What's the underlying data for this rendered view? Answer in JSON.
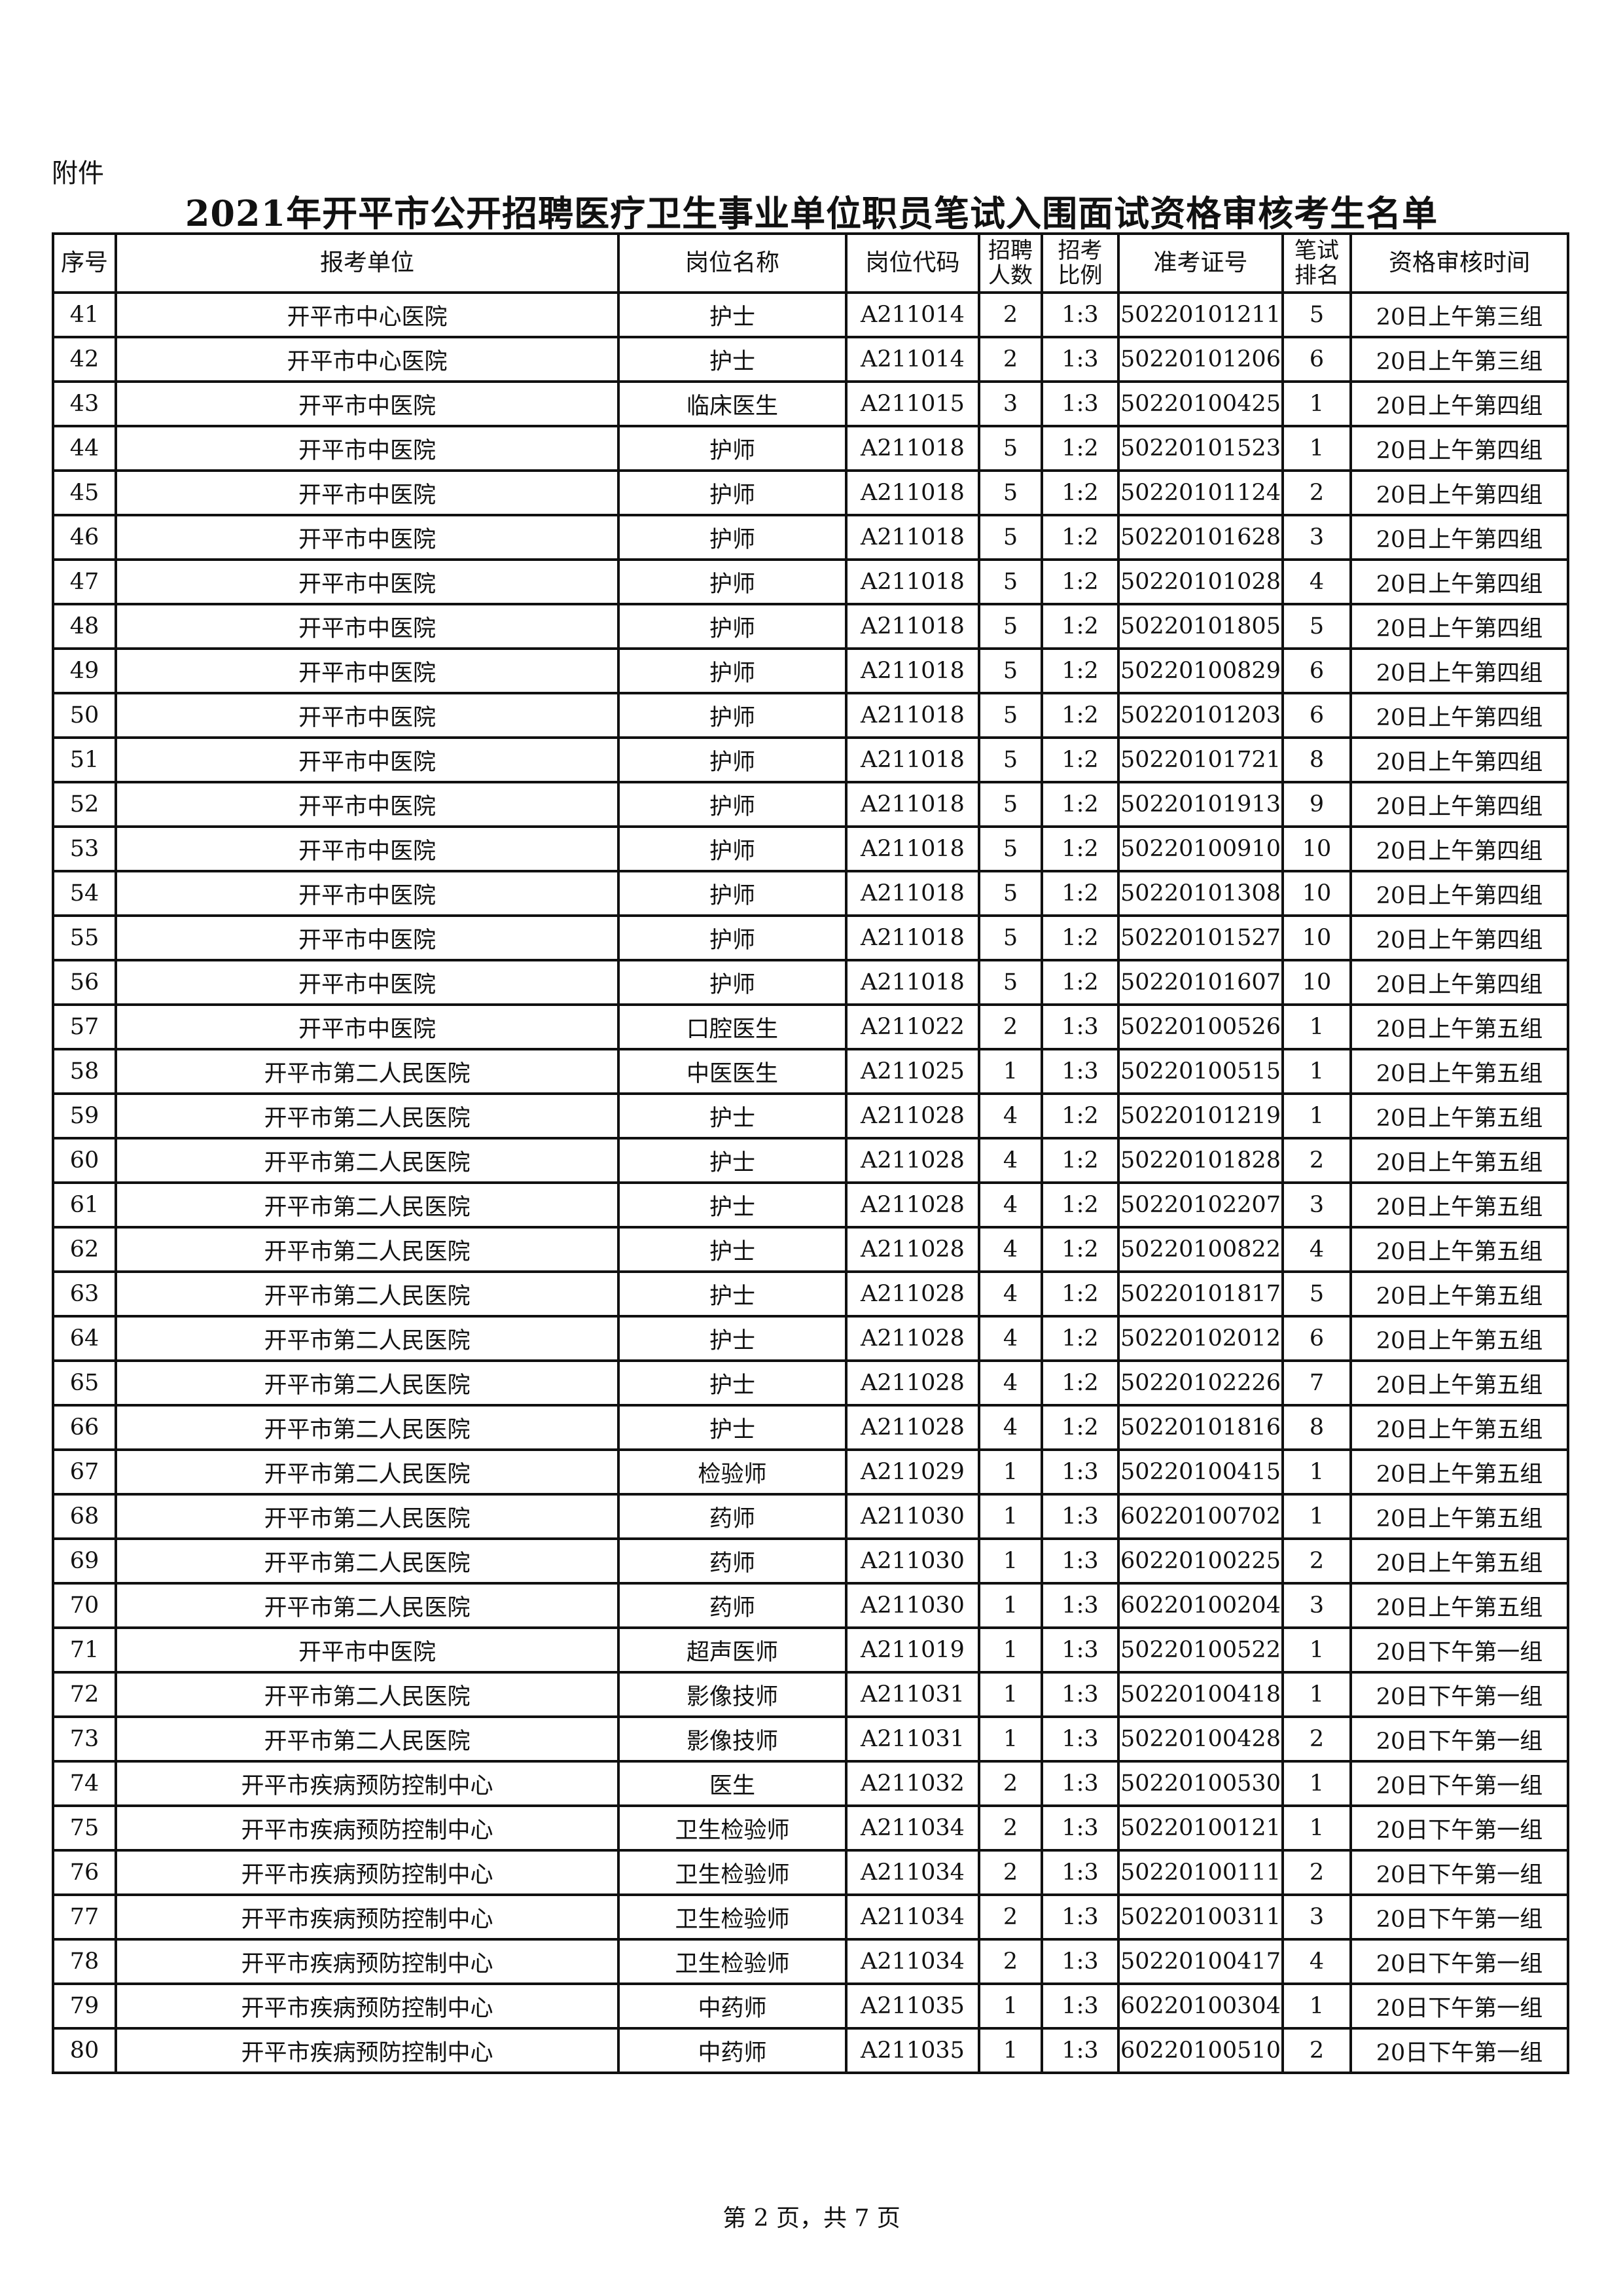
{
  "attachment_label": "附件",
  "title": "2021年开平市公开招聘医疗卫生事业单位职员笔试入围面试资格审核考生名单",
  "columns": [
    "序号",
    "报考单位",
    "岗位名称",
    "岗位代码",
    "招聘\n人数",
    "招考\n比例",
    "准考证号",
    "笔试\n排名",
    "资格审核时间"
  ],
  "rows": [
    [
      "41",
      "开平市中心医院",
      "护士",
      "A211014",
      "2",
      "1:3",
      "50220101211",
      "5",
      "20日上午第三组"
    ],
    [
      "42",
      "开平市中心医院",
      "护士",
      "A211014",
      "2",
      "1:3",
      "50220101206",
      "6",
      "20日上午第三组"
    ],
    [
      "43",
      "开平市中医院",
      "临床医生",
      "A211015",
      "3",
      "1:3",
      "50220100425",
      "1",
      "20日上午第四组"
    ],
    [
      "44",
      "开平市中医院",
      "护师",
      "A211018",
      "5",
      "1:2",
      "50220101523",
      "1",
      "20日上午第四组"
    ],
    [
      "45",
      "开平市中医院",
      "护师",
      "A211018",
      "5",
      "1:2",
      "50220101124",
      "2",
      "20日上午第四组"
    ],
    [
      "46",
      "开平市中医院",
      "护师",
      "A211018",
      "5",
      "1:2",
      "50220101628",
      "3",
      "20日上午第四组"
    ],
    [
      "47",
      "开平市中医院",
      "护师",
      "A211018",
      "5",
      "1:2",
      "50220101028",
      "4",
      "20日上午第四组"
    ],
    [
      "48",
      "开平市中医院",
      "护师",
      "A211018",
      "5",
      "1:2",
      "50220101805",
      "5",
      "20日上午第四组"
    ],
    [
      "49",
      "开平市中医院",
      "护师",
      "A211018",
      "5",
      "1:2",
      "50220100829",
      "6",
      "20日上午第四组"
    ],
    [
      "50",
      "开平市中医院",
      "护师",
      "A211018",
      "5",
      "1:2",
      "50220101203",
      "6",
      "20日上午第四组"
    ],
    [
      "51",
      "开平市中医院",
      "护师",
      "A211018",
      "5",
      "1:2",
      "50220101721",
      "8",
      "20日上午第四组"
    ],
    [
      "52",
      "开平市中医院",
      "护师",
      "A211018",
      "5",
      "1:2",
      "50220101913",
      "9",
      "20日上午第四组"
    ],
    [
      "53",
      "开平市中医院",
      "护师",
      "A211018",
      "5",
      "1:2",
      "50220100910",
      "10",
      "20日上午第四组"
    ],
    [
      "54",
      "开平市中医院",
      "护师",
      "A211018",
      "5",
      "1:2",
      "50220101308",
      "10",
      "20日上午第四组"
    ],
    [
      "55",
      "开平市中医院",
      "护师",
      "A211018",
      "5",
      "1:2",
      "50220101527",
      "10",
      "20日上午第四组"
    ],
    [
      "56",
      "开平市中医院",
      "护师",
      "A211018",
      "5",
      "1:2",
      "50220101607",
      "10",
      "20日上午第四组"
    ],
    [
      "57",
      "开平市中医院",
      "口腔医生",
      "A211022",
      "2",
      "1:3",
      "50220100526",
      "1",
      "20日上午第五组"
    ],
    [
      "58",
      "开平市第二人民医院",
      "中医医生",
      "A211025",
      "1",
      "1:3",
      "50220100515",
      "1",
      "20日上午第五组"
    ],
    [
      "59",
      "开平市第二人民医院",
      "护士",
      "A211028",
      "4",
      "1:2",
      "50220101219",
      "1",
      "20日上午第五组"
    ],
    [
      "60",
      "开平市第二人民医院",
      "护士",
      "A211028",
      "4",
      "1:2",
      "50220101828",
      "2",
      "20日上午第五组"
    ],
    [
      "61",
      "开平市第二人民医院",
      "护士",
      "A211028",
      "4",
      "1:2",
      "50220102207",
      "3",
      "20日上午第五组"
    ],
    [
      "62",
      "开平市第二人民医院",
      "护士",
      "A211028",
      "4",
      "1:2",
      "50220100822",
      "4",
      "20日上午第五组"
    ],
    [
      "63",
      "开平市第二人民医院",
      "护士",
      "A211028",
      "4",
      "1:2",
      "50220101817",
      "5",
      "20日上午第五组"
    ],
    [
      "64",
      "开平市第二人民医院",
      "护士",
      "A211028",
      "4",
      "1:2",
      "50220102012",
      "6",
      "20日上午第五组"
    ],
    [
      "65",
      "开平市第二人民医院",
      "护士",
      "A211028",
      "4",
      "1:2",
      "50220102226",
      "7",
      "20日上午第五组"
    ],
    [
      "66",
      "开平市第二人民医院",
      "护士",
      "A211028",
      "4",
      "1:2",
      "50220101816",
      "8",
      "20日上午第五组"
    ],
    [
      "67",
      "开平市第二人民医院",
      "检验师",
      "A211029",
      "1",
      "1:3",
      "50220100415",
      "1",
      "20日上午第五组"
    ],
    [
      "68",
      "开平市第二人民医院",
      "药师",
      "A211030",
      "1",
      "1:3",
      "60220100702",
      "1",
      "20日上午第五组"
    ],
    [
      "69",
      "开平市第二人民医院",
      "药师",
      "A211030",
      "1",
      "1:3",
      "60220100225",
      "2",
      "20日上午第五组"
    ],
    [
      "70",
      "开平市第二人民医院",
      "药师",
      "A211030",
      "1",
      "1:3",
      "60220100204",
      "3",
      "20日上午第五组"
    ],
    [
      "71",
      "开平市中医院",
      "超声医师",
      "A211019",
      "1",
      "1:3",
      "50220100522",
      "1",
      "20日下午第一组"
    ],
    [
      "72",
      "开平市第二人民医院",
      "影像技师",
      "A211031",
      "1",
      "1:3",
      "50220100418",
      "1",
      "20日下午第一组"
    ],
    [
      "73",
      "开平市第二人民医院",
      "影像技师",
      "A211031",
      "1",
      "1:3",
      "50220100428",
      "2",
      "20日下午第一组"
    ],
    [
      "74",
      "开平市疾病预防控制中心",
      "医生",
      "A211032",
      "2",
      "1:3",
      "50220100530",
      "1",
      "20日下午第一组"
    ],
    [
      "75",
      "开平市疾病预防控制中心",
      "卫生检验师",
      "A211034",
      "2",
      "1:3",
      "50220100121",
      "1",
      "20日下午第一组"
    ],
    [
      "76",
      "开平市疾病预防控制中心",
      "卫生检验师",
      "A211034",
      "2",
      "1:3",
      "50220100111",
      "2",
      "20日下午第一组"
    ],
    [
      "77",
      "开平市疾病预防控制中心",
      "卫生检验师",
      "A211034",
      "2",
      "1:3",
      "50220100311",
      "3",
      "20日下午第一组"
    ],
    [
      "78",
      "开平市疾病预防控制中心",
      "卫生检验师",
      "A211034",
      "2",
      "1:3",
      "50220100417",
      "4",
      "20日下午第一组"
    ],
    [
      "79",
      "开平市疾病预防控制中心",
      "中药师",
      "A211035",
      "1",
      "1:3",
      "60220100304",
      "1",
      "20日下午第一组"
    ],
    [
      "80",
      "开平市疾病预防控制中心",
      "中药师",
      "A211035",
      "1",
      "1:3",
      "60220100510",
      "2",
      "20日下午第一组"
    ]
  ],
  "footer": "第 2 页，共 7 页"
}
